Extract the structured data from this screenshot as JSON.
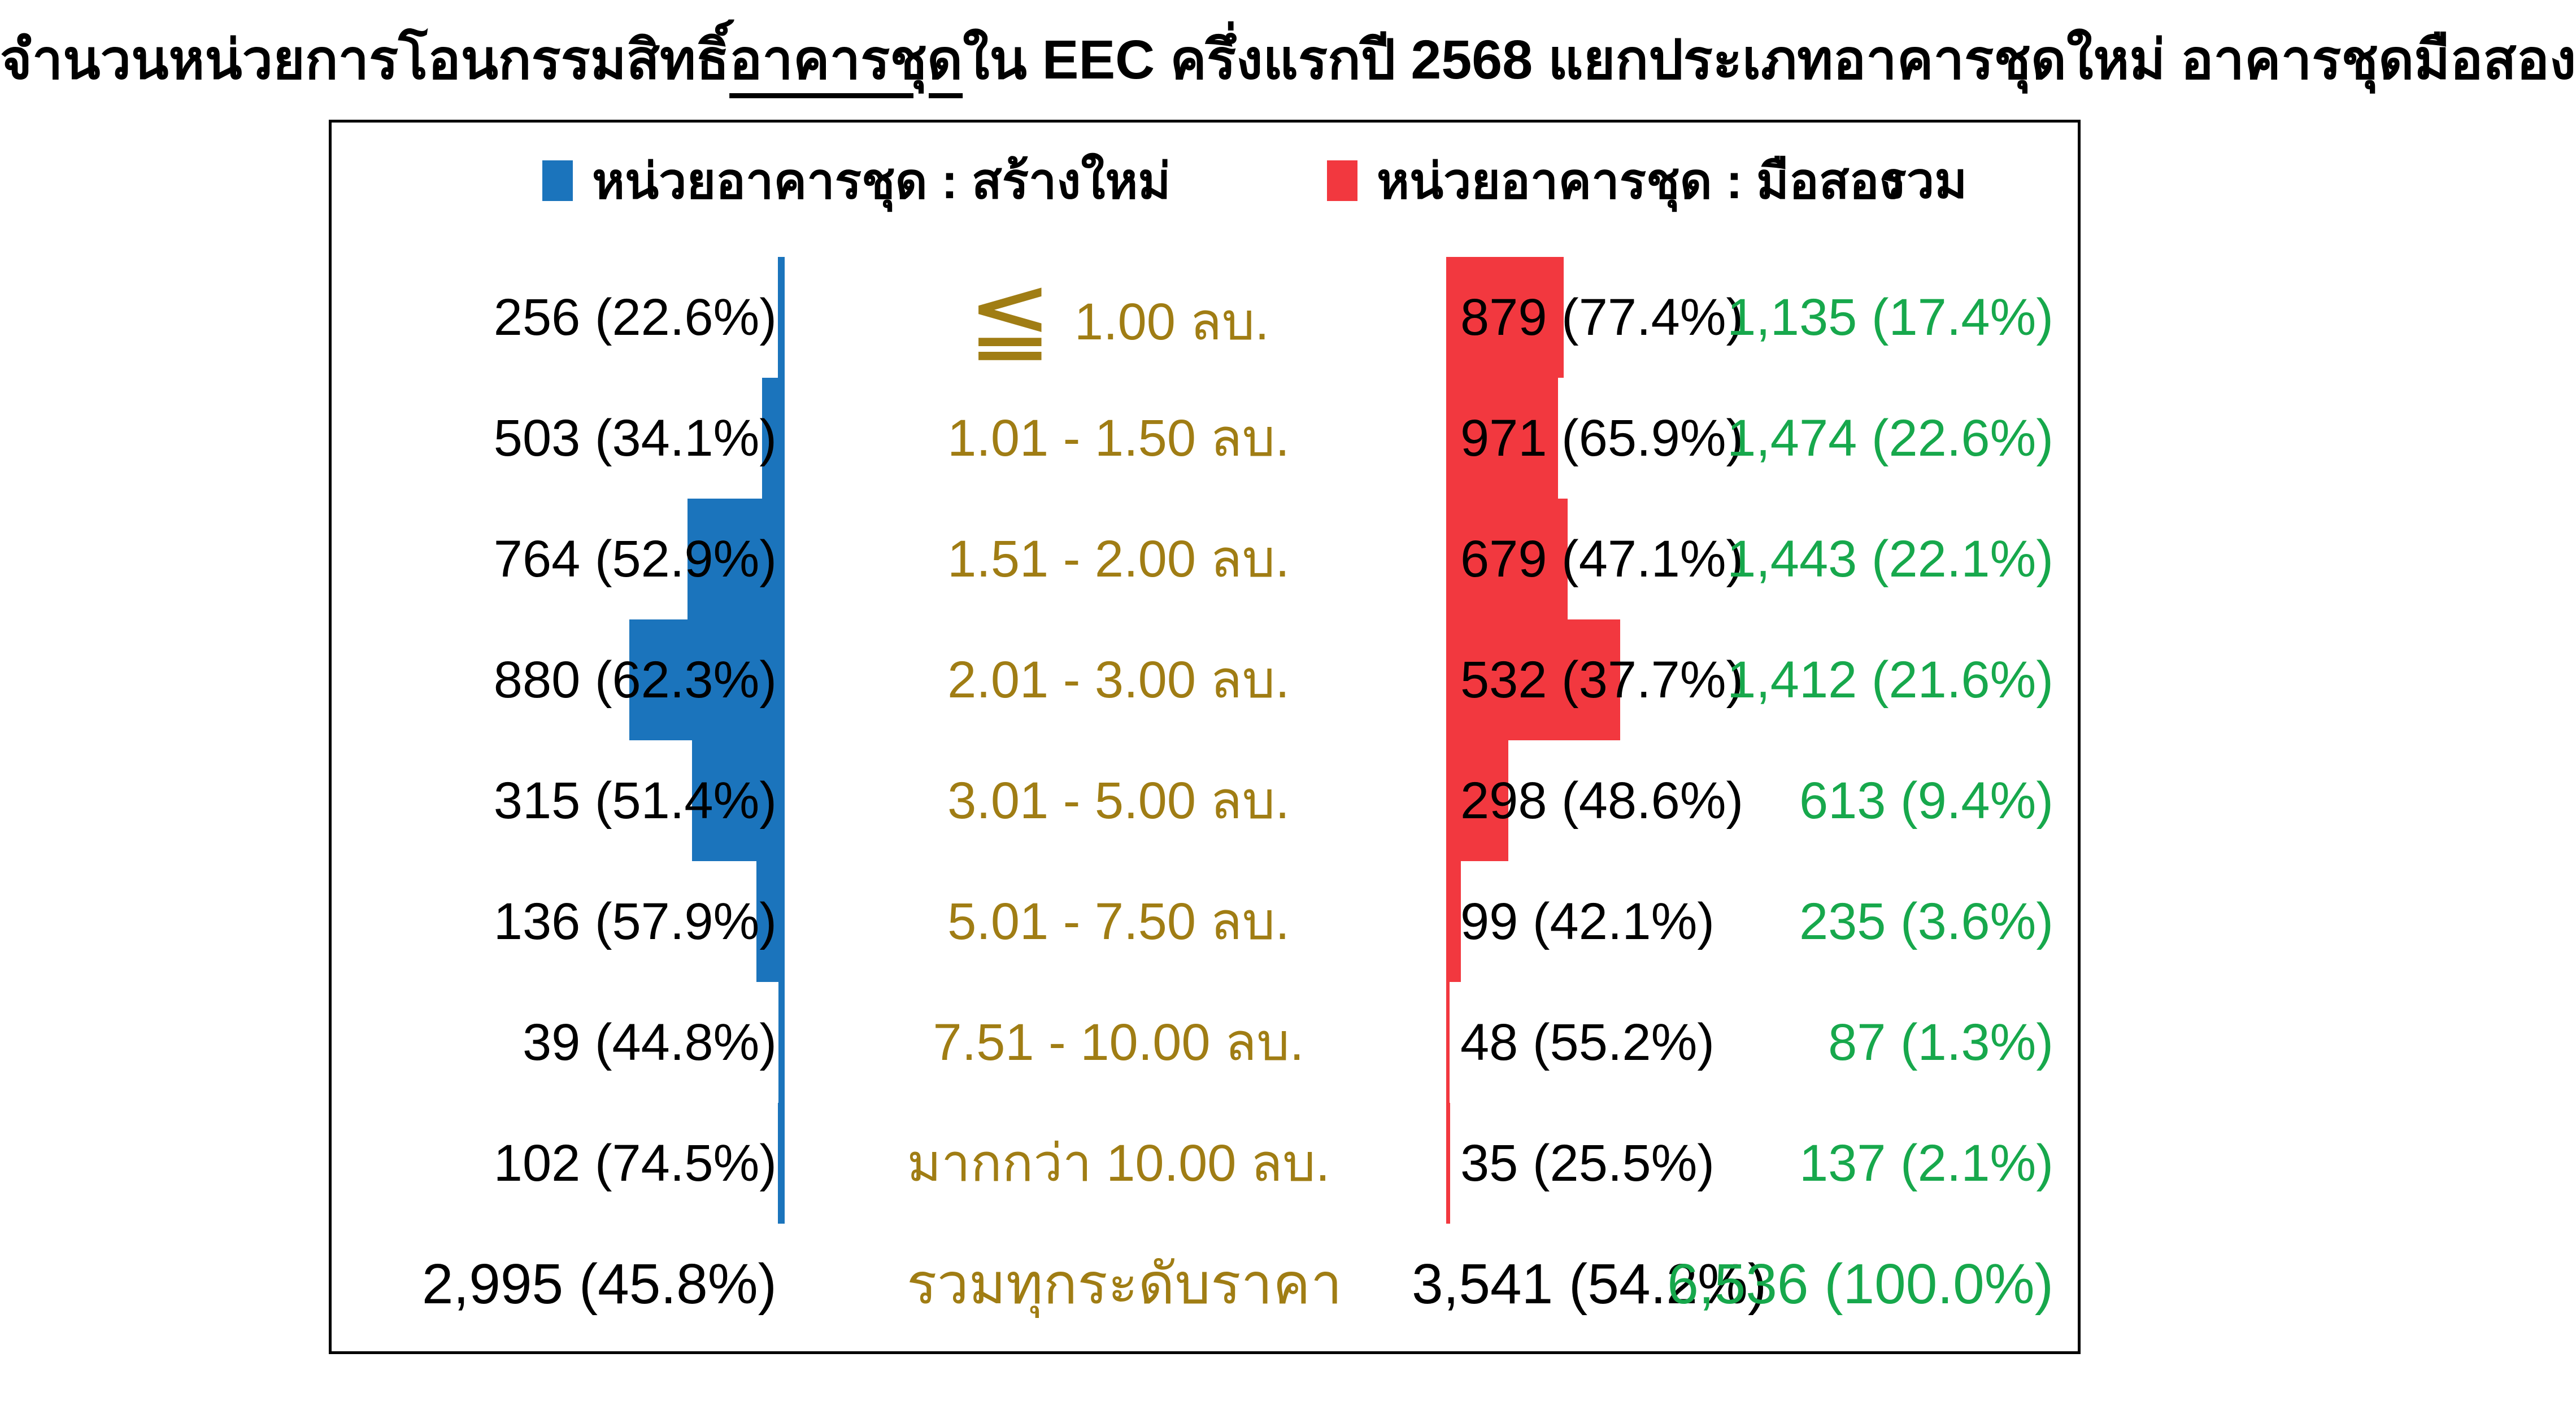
{
  "title": {
    "part1": "จำนวนหน่วยการโอนกรรมสิทธิ์",
    "underlined": "อาคารชุด",
    "part2": "ใน EEC ครึ่งแรกปี 2568 แยกประเภทอาคารชุดใหม่ อาคารชุดมือสอง"
  },
  "legend": {
    "new_label": "หน่วยอาคารชุด : สร้างใหม่",
    "used_label": "หน่วยอาคารชุด : มือสอง",
    "total_label": "รวม"
  },
  "colors": {
    "new_blue": "#1B74BC",
    "used_red": "#F2383F",
    "price_gold": "#A07D14",
    "total_green": "#17A84C",
    "text_black": "#000000",
    "background": "#FFFFFF"
  },
  "chart_data": {
    "type": "bar",
    "layout": "butterfly-table",
    "title": "จำนวนหน่วยการโอนกรรมสิทธิ์อาคารชุดใน EEC ครึ่งแรกปี 2568 แยกประเภทอาคารชุดใหม่ อาคารชุดมือสอง",
    "legend_position": "top",
    "series": [
      {
        "name": "หน่วยอาคารชุด : สร้างใหม่",
        "color": "#1B74BC"
      },
      {
        "name": "หน่วยอาคารชุด : มือสอง",
        "color": "#F2383F"
      }
    ],
    "rows": [
      {
        "range_prefix": "≦",
        "range": " 1.00 ลบ.",
        "new_units": 256,
        "new_pct": 22.6,
        "used_units": 879,
        "used_pct": 77.4,
        "total_units": 1135,
        "total_pct": 17.4,
        "new_label": "256 (22.6%)",
        "used_label": "879 (77.4%)",
        "total_label": "1,135 (17.4%)",
        "new_bar_w": 12,
        "used_bar_w": 208
      },
      {
        "range_prefix": "",
        "range": "1.01 - 1.50 ลบ.",
        "new_units": 503,
        "new_pct": 34.1,
        "used_units": 971,
        "used_pct": 65.9,
        "total_units": 1474,
        "total_pct": 22.6,
        "new_label": "503 (34.1%)",
        "used_label": "971 (65.9%)",
        "total_label": "1,474 (22.6%)",
        "new_bar_w": 40,
        "used_bar_w": 198
      },
      {
        "range_prefix": "",
        "range": "1.51 - 2.00 ลบ.",
        "new_units": 764,
        "new_pct": 52.9,
        "used_units": 679,
        "used_pct": 47.1,
        "total_units": 1443,
        "total_pct": 22.1,
        "new_label": "764 (52.9%)",
        "used_label": "679 (47.1%)",
        "total_label": "1,443 (22.1%)",
        "new_bar_w": 172,
        "used_bar_w": 215
      },
      {
        "range_prefix": "",
        "range": "2.01 - 3.00 ลบ.",
        "new_units": 880,
        "new_pct": 62.3,
        "used_units": 532,
        "used_pct": 37.7,
        "total_units": 1412,
        "total_pct": 21.6,
        "new_label": "880 (62.3%)",
        "used_label": "532 (37.7%)",
        "total_label": "1,412 (21.6%)",
        "new_bar_w": 275,
        "used_bar_w": 308
      },
      {
        "range_prefix": "",
        "range": "3.01 - 5.00 ลบ.",
        "new_units": 315,
        "new_pct": 51.4,
        "used_units": 298,
        "used_pct": 48.6,
        "total_units": 613,
        "total_pct": 9.4,
        "new_label": "315 (51.4%)",
        "used_label": "298 (48.6%)",
        "total_label": "613 (9.4%)",
        "new_bar_w": 164,
        "used_bar_w": 110
      },
      {
        "range_prefix": "",
        "range": "5.01 - 7.50 ลบ.",
        "new_units": 136,
        "new_pct": 57.9,
        "used_units": 99,
        "used_pct": 42.1,
        "total_units": 235,
        "total_pct": 3.6,
        "new_label": "136 (57.9%)",
        "used_label": "99 (42.1%)",
        "total_label": "235 (3.6%)",
        "new_bar_w": 50,
        "used_bar_w": 26
      },
      {
        "range_prefix": "",
        "range": "7.51 - 10.00 ลบ.",
        "new_units": 39,
        "new_pct": 44.8,
        "used_units": 48,
        "used_pct": 55.2,
        "total_units": 87,
        "total_pct": 1.3,
        "new_label": "39 (44.8%)",
        "used_label": "48 (55.2%)",
        "total_label": "87 (1.3%)",
        "new_bar_w": 11,
        "used_bar_w": 6
      },
      {
        "range_prefix": "",
        "range": "มากกว่า 10.00 ลบ.",
        "new_units": 102,
        "new_pct": 74.5,
        "used_units": 35,
        "used_pct": 25.5,
        "total_units": 137,
        "total_pct": 2.1,
        "new_label": "102 (74.5%)",
        "used_label": "35 (25.5%)",
        "total_label": "137 (2.1%)",
        "new_bar_w": 12,
        "used_bar_w": 7
      }
    ],
    "total_row": {
      "range": "รวมทุกระดับราคา",
      "new_units": 2995,
      "new_pct": 45.8,
      "used_units": 3541,
      "used_pct": 54.2,
      "total_units": 6536,
      "total_pct": 100.0,
      "new_label": "2,995 (45.8%)",
      "used_label": "3,541 (54.2%)",
      "total_label": "6,536 (100.0%)"
    }
  }
}
